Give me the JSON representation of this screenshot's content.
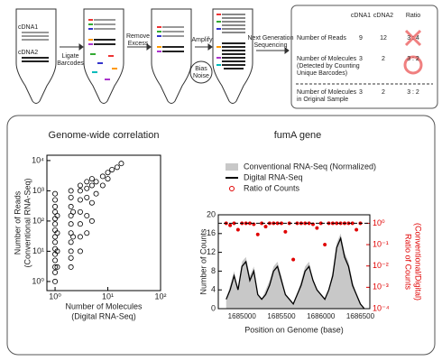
{
  "diagram": {
    "cdna_labels": [
      "cDNA1",
      "cDNA2"
    ],
    "steps": [
      [
        "Ligate",
        "Barcodes"
      ],
      [
        "Remove",
        "Excess"
      ],
      [
        "Amplify"
      ],
      [
        "Next Generation",
        "Sequencing"
      ]
    ],
    "bias": [
      "Bias",
      "Noise"
    ]
  },
  "table": {
    "header": [
      "cDNA1",
      "cDNA2",
      "Ratio"
    ],
    "rows": [
      {
        "label": [
          "Number of Reads"
        ],
        "cells": [
          9,
          12,
          "3 : 4"
        ]
      },
      {
        "label": [
          "Number of Molecules",
          "(Detected by Counting",
          "Unique Barcodes)"
        ],
        "cells": [
          3,
          2,
          "3 : 2"
        ]
      },
      {
        "label": [
          "Number of Molecules",
          "in Original Sample"
        ],
        "cells": [
          3,
          2,
          "3 : 2"
        ]
      }
    ]
  },
  "chart_data": [
    {
      "type": "scatter",
      "title": "Genome-wide correlation",
      "xlabel": [
        "Number of Molecules",
        "(Digital RNA-Seq)"
      ],
      "ylabel": [
        "Number of Reads",
        "(Conventional RNA-Seq)"
      ],
      "log_x": true,
      "log_y": true,
      "color": "#000000",
      "x": [
        1,
        1,
        1,
        1,
        1,
        1,
        1,
        1,
        1,
        1,
        1,
        1,
        1,
        1,
        1,
        1.1,
        1.1,
        1.1,
        1.1,
        2,
        2,
        2,
        2,
        2,
        2,
        2,
        2,
        2,
        2,
        2.2,
        2.2,
        3,
        3,
        3,
        3,
        3,
        3,
        3,
        4,
        4,
        4,
        4,
        4,
        5,
        5,
        5,
        5,
        6,
        6,
        8,
        8,
        10,
        10,
        12,
        15,
        18
      ],
      "values": [
        1,
        2,
        3,
        5,
        8,
        12,
        20,
        30,
        50,
        80,
        120,
        200,
        300,
        500,
        800,
        3,
        10,
        40,
        150,
        3,
        6,
        10,
        20,
        40,
        80,
        150,
        300,
        600,
        1000,
        30,
        200,
        10,
        30,
        80,
        200,
        500,
        1000,
        1500,
        40,
        150,
        600,
        1200,
        2000,
        100,
        400,
        1500,
        2500,
        800,
        2000,
        1500,
        3000,
        2500,
        4000,
        5000,
        6000,
        8000
      ],
      "xlim": [
        0.7,
        100
      ],
      "xticks": [
        {
          "value": 1,
          "label": "10⁰"
        },
        {
          "value": 10,
          "label": "10¹"
        },
        {
          "value": 100,
          "label": "10²"
        }
      ],
      "ylim": [
        0.5,
        15000
      ],
      "yticks": [
        {
          "value": 1,
          "label": "10⁰"
        },
        {
          "value": 10,
          "label": "10¹"
        },
        {
          "value": 100,
          "label": "10²"
        },
        {
          "value": 1000,
          "label": "10³"
        },
        {
          "value": 10000,
          "label": "10⁴"
        }
      ]
    },
    {
      "type": "line",
      "title": "fumA gene",
      "xlabel": "Position on Genome (base)",
      "ylabel": "Number of Counts",
      "y2label": [
        "Ratio of Counts",
        "(Conventional/Digital)"
      ],
      "x": [
        1684800,
        1684850,
        1684900,
        1684950,
        1685000,
        1685050,
        1685100,
        1685150,
        1685200,
        1685250,
        1685300,
        1685350,
        1685400,
        1685450,
        1685500,
        1685550,
        1685600,
        1685650,
        1685700,
        1685750,
        1685800,
        1685850,
        1685900,
        1685950,
        1686000,
        1686050,
        1686100,
        1686150,
        1686200,
        1686250,
        1686300,
        1686350,
        1686400,
        1686450,
        1686500,
        1686550
      ],
      "series": [
        {
          "name": "Conventional RNA-Seq (Normalized)",
          "color": "#c8c8c8",
          "style": "area",
          "values": [
            2,
            5,
            8,
            4,
            10,
            11,
            7,
            9,
            3,
            2,
            4,
            6,
            9,
            10,
            7,
            3,
            2,
            1,
            3,
            6,
            9,
            10,
            6,
            4,
            3,
            2,
            4,
            8,
            14,
            16,
            12,
            10,
            6,
            3,
            1,
            0
          ]
        },
        {
          "name": "Digital RNA-Seq",
          "color": "#000000",
          "style": "line",
          "values": [
            2,
            4,
            7,
            4,
            9,
            10,
            6,
            8,
            3,
            2,
            3,
            5,
            8,
            9,
            6,
            3,
            2,
            1,
            3,
            5,
            8,
            9,
            6,
            4,
            3,
            2,
            4,
            7,
            13,
            15,
            11,
            9,
            5,
            3,
            1,
            0
          ]
        },
        {
          "name": "Ratio of Counts",
          "color": "#e00000",
          "style": "points",
          "axis": "y2",
          "values": [
            1,
            0.8,
            1,
            0.5,
            1,
            1,
            1,
            0.9,
            0.3,
            1,
            0.7,
            1,
            1,
            1,
            1,
            0.4,
            1,
            0.02,
            1,
            1,
            1,
            1,
            0.9,
            0.6,
            1,
            0.1,
            1,
            1,
            1,
            1,
            1,
            1,
            1,
            0.5,
            1,
            null
          ]
        }
      ],
      "reference_line": 1,
      "xlim": [
        1684700,
        1686620
      ],
      "xticks": [
        1685000,
        1685500,
        1686000,
        1686500
      ],
      "ylim": [
        0,
        20
      ],
      "yticks": [
        0,
        4,
        8,
        12,
        16,
        20
      ],
      "log_y2": true,
      "y2lim": [
        0.0001,
        2.5
      ],
      "y2ticks": [
        {
          "value": 0.0001,
          "label": "10⁻⁴"
        },
        {
          "value": 0.001,
          "label": "10⁻³"
        },
        {
          "value": 0.01,
          "label": "10⁻²"
        },
        {
          "value": 0.1,
          "label": "10⁻¹"
        },
        {
          "value": 1,
          "label": "10⁰"
        }
      ]
    }
  ]
}
